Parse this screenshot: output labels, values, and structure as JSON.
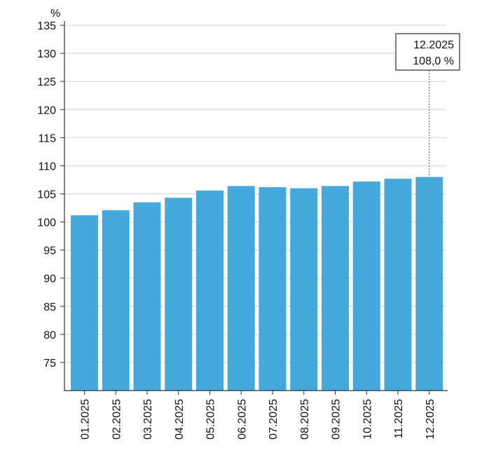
{
  "chart_data": {
    "type": "bar",
    "title": "",
    "xlabel": "",
    "ylabel": "%",
    "categories": [
      "01.2025",
      "02.2025",
      "03.2025",
      "04.2025",
      "05.2025",
      "06.2025",
      "07.2025",
      "08.2025",
      "09.2025",
      "10.2025",
      "11.2025",
      "12.2025"
    ],
    "values": [
      101.2,
      102.1,
      103.5,
      104.3,
      105.6,
      106.4,
      106.2,
      106.0,
      106.4,
      107.2,
      107.7,
      108.0
    ],
    "ylim": [
      70,
      137
    ],
    "yticks": [
      75,
      80,
      85,
      90,
      95,
      100,
      105,
      110,
      115,
      120,
      125,
      130,
      135
    ],
    "grid": true,
    "legend": "none",
    "bar_color": "#45a9dc",
    "grid_color": "#d9d9d9",
    "axis_color": "#333333",
    "tooltip": {
      "category": "12.2025",
      "value_text": "108,0 %"
    }
  }
}
